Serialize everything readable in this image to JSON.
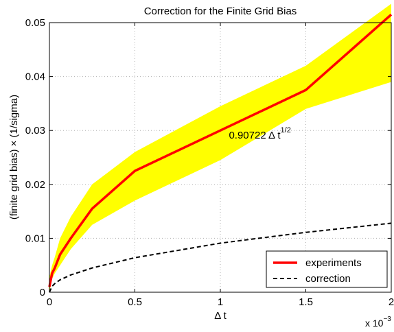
{
  "chart_data": {
    "type": "line",
    "title": "Correction for the Finite Grid Bias",
    "xlabel": "Δ t",
    "ylabel": "(finite grid bias) × (1/sigma)",
    "x_multiplier": {
      "base": "x 10",
      "exponent": "−3"
    },
    "xlim": [
      0,
      2
    ],
    "ylim": [
      0,
      0.05
    ],
    "x_ticks": [
      0,
      0.5,
      1,
      1.5,
      2
    ],
    "x_tick_labels": [
      "0",
      "0.5",
      "1",
      "1.5",
      "2"
    ],
    "y_ticks": [
      0,
      0.01,
      0.02,
      0.03,
      0.04,
      0.05
    ],
    "y_tick_labels": [
      "0",
      "0.01",
      "0.02",
      "0.03",
      "0.04",
      "0.05"
    ],
    "grid": true,
    "legend_placement": "bottom-right",
    "colors": {
      "experiments": "#ff0000",
      "band": "#ffff00",
      "correction": "#000000"
    },
    "band": {
      "x": [
        0,
        0.0156,
        0.0313,
        0.0625,
        0.125,
        0.25,
        0.5,
        1.0,
        1.5,
        2.0
      ],
      "low": [
        0.0,
        0.0025,
        0.0035,
        0.005,
        0.008,
        0.0125,
        0.017,
        0.0245,
        0.034,
        0.039
      ],
      "high": [
        0.0028,
        0.005,
        0.0065,
        0.01,
        0.014,
        0.02,
        0.026,
        0.0345,
        0.042,
        0.0535
      ]
    },
    "series": [
      {
        "name": "experiments",
        "style": "solid",
        "x": [
          0,
          0.0156,
          0.0313,
          0.0625,
          0.125,
          0.25,
          0.5,
          1.0,
          1.5,
          2.0
        ],
        "y": [
          0.001,
          0.0035,
          0.0045,
          0.007,
          0.01,
          0.0155,
          0.0225,
          0.03,
          0.0375,
          0.0515
        ]
      },
      {
        "name": "correction",
        "style": "dashed",
        "x": [
          0,
          0.0156,
          0.0313,
          0.0625,
          0.125,
          0.25,
          0.5,
          1.0,
          1.5,
          2.0
        ],
        "y": [
          0.0,
          0.0011,
          0.0016,
          0.0023,
          0.0032,
          0.0045,
          0.0064,
          0.0091,
          0.0111,
          0.0128
        ]
      }
    ],
    "annotation": {
      "text": "0.90722 Δ t",
      "superscript": "1/2",
      "x": 1.05,
      "y": 0.0285
    }
  }
}
